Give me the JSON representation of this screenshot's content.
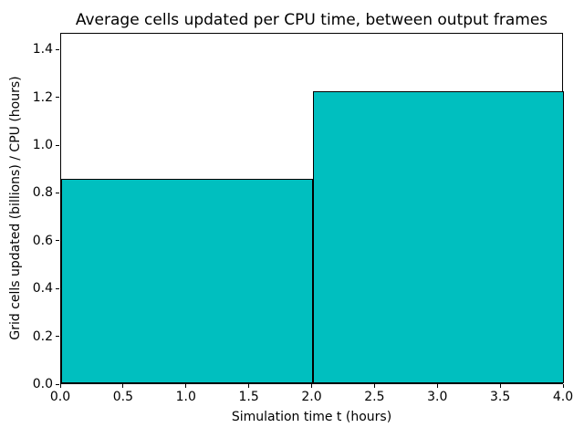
{
  "chart_data": {
    "type": "bar",
    "subtype": "step-histogram",
    "title": "Average cells updated per CPU time, between output frames",
    "xlabel": "Simulation time t (hours)",
    "ylabel": "Grid cells updated (billions) / CPU (hours)",
    "bars": [
      {
        "x_start": 0.0,
        "x_end": 2.0,
        "value": 0.855
      },
      {
        "x_start": 2.0,
        "x_end": 4.0,
        "value": 1.22
      }
    ],
    "xlim": [
      0.0,
      4.0
    ],
    "ylim": [
      0.0,
      1.47
    ],
    "xticks": [
      0.0,
      0.5,
      1.0,
      1.5,
      2.0,
      2.5,
      3.0,
      3.5,
      4.0
    ],
    "xtick_labels": [
      "0.0",
      "0.5",
      "1.0",
      "1.5",
      "2.0",
      "2.5",
      "3.0",
      "3.5",
      "4.0"
    ],
    "yticks": [
      0.0,
      0.2,
      0.4,
      0.6,
      0.8,
      1.0,
      1.2,
      1.4
    ],
    "ytick_labels": [
      "0.0",
      "0.2",
      "0.4",
      "0.6",
      "0.8",
      "1.0",
      "1.2",
      "1.4"
    ],
    "bar_fill_color": "#00BFBF",
    "bar_edge_color": "#000000",
    "background_color": "#ffffff",
    "grid": false,
    "legend_position": "none"
  }
}
